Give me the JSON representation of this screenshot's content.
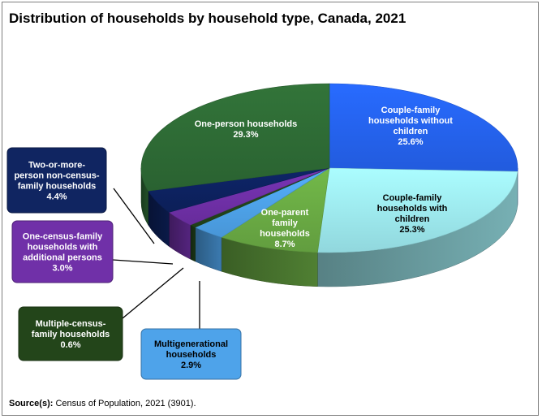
{
  "title": "Distribution of households by household type, Canada, 2021",
  "source_label": "Source(s):",
  "source_text": "Census of Population, 2021 (3901).",
  "chart_data": {
    "type": "pie",
    "title": "Distribution of households by household type, Canada, 2021",
    "unit": "%",
    "slices": [
      {
        "label": "Couple-family households without children",
        "value": 25.6,
        "value_label": "25.6%",
        "color": "#2563f0"
      },
      {
        "label": "Couple-family households with children",
        "value": 25.3,
        "value_label": "25.3%",
        "color": "#9eeaf0"
      },
      {
        "label": "One-parent family households",
        "value": 8.7,
        "value_label": "8.7%",
        "color": "#6aab44"
      },
      {
        "label": "Multigenerational households",
        "value": 2.9,
        "value_label": "2.9%",
        "color": "#4ea3ea"
      },
      {
        "label": "Multiple-census-family households",
        "value": 0.6,
        "value_label": "0.6%",
        "color": "#23451a"
      },
      {
        "label": "One-census-family households with additional persons",
        "value": 3.0,
        "value_label": "3.0%",
        "color": "#7030a8"
      },
      {
        "label": "Two-or-more-person non-census-family households",
        "value": 4.4,
        "value_label": "4.4%",
        "color": "#0d2260"
      },
      {
        "label": "One-person households",
        "value": 29.3,
        "value_label": "29.3%",
        "color": "#2e6b35"
      }
    ],
    "inner_labels": [
      [
        "Couple-family",
        "households without",
        "children",
        "25.6%"
      ],
      [
        "Couple-family",
        "households with",
        "children",
        "25.3%"
      ],
      [
        "One-parent",
        "family",
        "households",
        "8.7%"
      ],
      [],
      [],
      [],
      [],
      [
        "One-person households",
        "29.3%"
      ]
    ],
    "callouts": [
      {
        "lines": [
          "Two-or-more-",
          "person non-census-",
          "family households",
          "4.4%"
        ],
        "bg": "#102561",
        "fg": "#ffffff"
      },
      {
        "lines": [
          "One-census-family",
          "households with",
          "additional persons",
          "3.0%"
        ],
        "bg": "#7030a8",
        "fg": "#ffffff"
      },
      {
        "lines": [
          "Multiple-census-",
          "family households",
          "0.6%"
        ],
        "bg": "#23451a",
        "fg": "#ffffff"
      },
      {
        "lines": [
          "Multigenerational",
          "households",
          "2.9%"
        ],
        "bg": "#4ea3ea",
        "fg": "#000000"
      }
    ]
  }
}
